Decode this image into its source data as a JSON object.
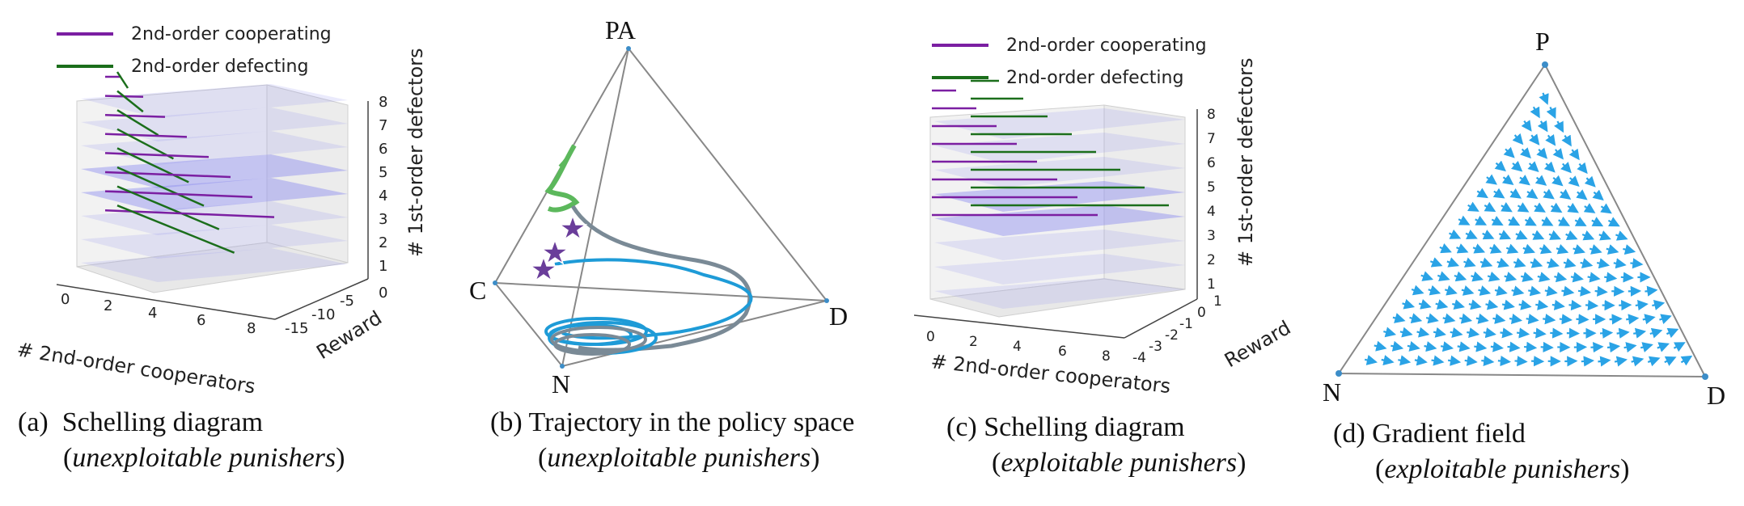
{
  "colors": {
    "cooperating": "#7b1fa2",
    "defecting": "#1b6e1b",
    "trajectory_blue": "#1e9bd7",
    "trajectory_gray": "#7a8a96",
    "trajectory_green": "#5cb85c",
    "star": "#6a3d9a",
    "plane": "#8c8cf0",
    "arrow": "#2aa3e6"
  },
  "panels": [
    {
      "legend": [
        "2nd-order cooperating",
        "2nd-order defecting"
      ],
      "xlabel": "# 2nd-order cooperators",
      "ylabel": "Reward",
      "zlabel": "# 1st-order defectors",
      "xticks": [
        "0",
        "2",
        "4",
        "6",
        "8"
      ],
      "yticks": [
        "-15",
        "-10",
        "-5",
        "0"
      ],
      "zticks": [
        "1",
        "2",
        "3",
        "4",
        "5",
        "6",
        "7",
        "8"
      ],
      "caption_prefix": "(a)",
      "caption_title": "Schelling diagram",
      "caption_sub": "unexploitable punishers",
      "chart_data": {
        "type": "line",
        "title": "",
        "z": [
          8,
          7,
          6,
          5,
          4,
          3,
          2,
          1
        ],
        "cooperating_segments": [
          [
            0,
            1
          ],
          [
            0,
            2
          ],
          [
            0,
            3
          ],
          [
            0,
            4
          ],
          [
            0,
            5
          ],
          [
            0,
            6
          ],
          [
            0,
            7
          ],
          [
            0,
            8
          ]
        ],
        "defecting_segments": [
          [
            0,
            1
          ],
          [
            0,
            2
          ],
          [
            0,
            3
          ],
          [
            0,
            4
          ],
          [
            0,
            5
          ],
          [
            0,
            6
          ],
          [
            0,
            7
          ],
          [
            0,
            8
          ]
        ]
      }
    },
    {
      "vertices": [
        "PA",
        "C",
        "D",
        "N"
      ],
      "caption_prefix": "(b)",
      "caption_title": "Trajectory in the policy space",
      "caption_sub": "unexploitable punishers"
    },
    {
      "legend": [
        "2nd-order cooperating",
        "2nd-order defecting"
      ],
      "xlabel": "# 2nd-order cooperators",
      "ylabel": "Reward",
      "zlabel": "# 1st-order defectors",
      "xticks": [
        "0",
        "2",
        "4",
        "6",
        "8"
      ],
      "yticks": [
        "-4",
        "-3",
        "-2",
        "-1",
        "0",
        "1"
      ],
      "zticks": [
        "1",
        "2",
        "3",
        "4",
        "5",
        "6",
        "7",
        "8"
      ],
      "caption_prefix": "(c)",
      "caption_title": "Schelling diagram",
      "caption_sub": "exploitable punishers"
    },
    {
      "vertices": [
        "P",
        "N",
        "D"
      ],
      "caption_prefix": "(d)",
      "caption_title": "Gradient field",
      "caption_sub": "exploitable punishers"
    }
  ]
}
